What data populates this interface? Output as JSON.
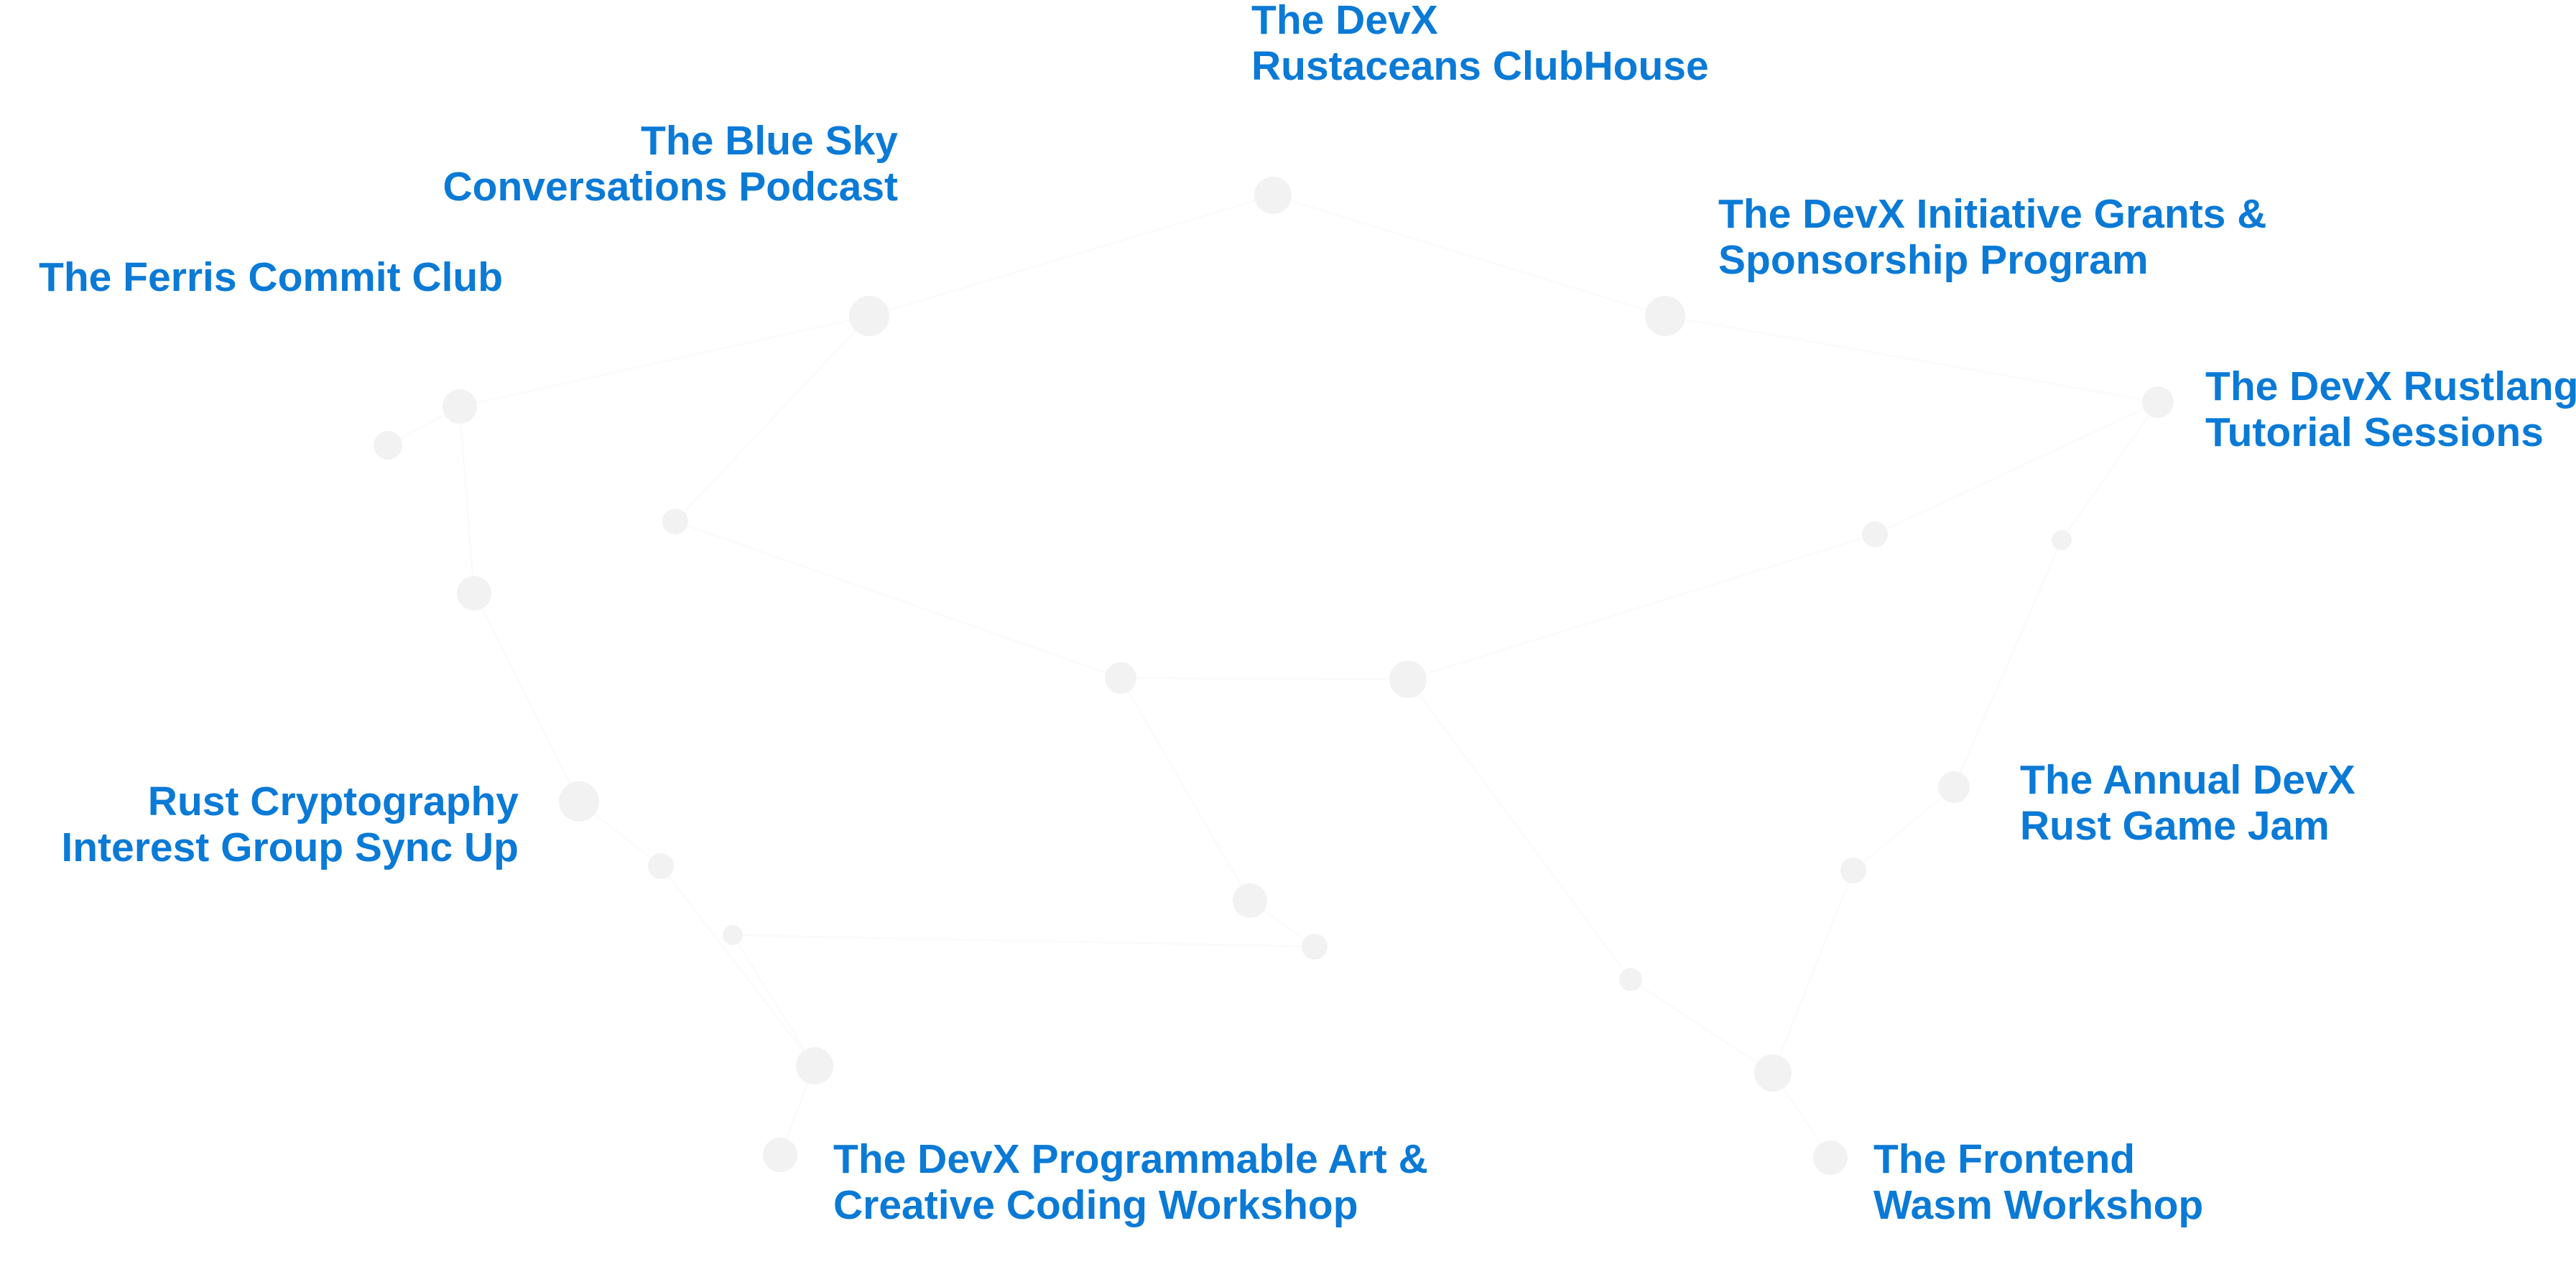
{
  "colors": {
    "label_text": "#0a7ad6",
    "background": "#ffffff",
    "faint_dot": "#f2f2f2",
    "faint_line": "#fbfbfb"
  },
  "labels": [
    {
      "id": "rustaceans-clubhouse",
      "lines": [
        "The DevX",
        "Rustaceans ClubHouse"
      ]
    },
    {
      "id": "blue-sky-podcast",
      "lines": [
        "The Blue Sky",
        "Conversations Podcast"
      ]
    },
    {
      "id": "ferris-commit-club",
      "lines": [
        "The Ferris Commit Club"
      ]
    },
    {
      "id": "grants-sponsorship",
      "lines": [
        "The DevX Initiative Grants &",
        "Sponsorship Program"
      ]
    },
    {
      "id": "rustlang-tutorials",
      "lines": [
        "The DevX Rustlang",
        "Tutorial Sessions"
      ]
    },
    {
      "id": "crypto-interest-group",
      "lines": [
        "Rust Cryptography",
        "Interest Group Sync Up"
      ]
    },
    {
      "id": "rust-game-jam",
      "lines": [
        "The Annual DevX",
        "Rust Game Jam"
      ]
    },
    {
      "id": "programmable-art",
      "lines": [
        "The DevX Programmable Art &",
        "Creative Coding Workshop"
      ]
    },
    {
      "id": "frontend-wasm",
      "lines": [
        "The Frontend",
        "Wasm Workshop"
      ]
    }
  ]
}
